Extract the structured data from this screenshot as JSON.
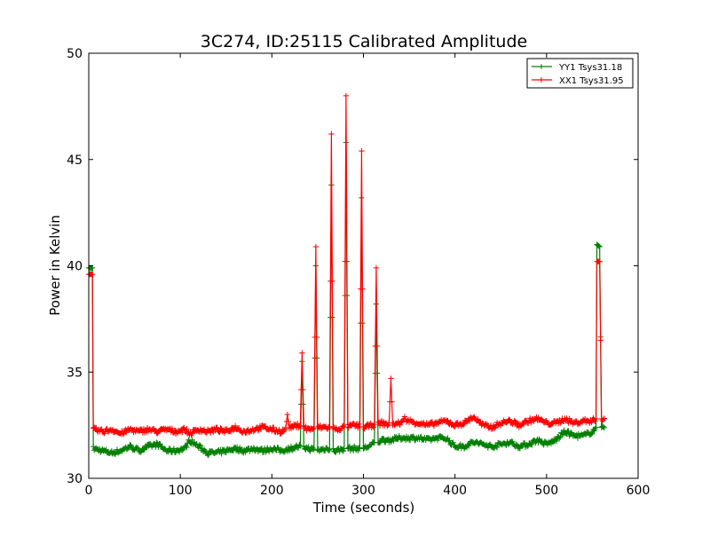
{
  "chart_data": {
    "type": "line",
    "title": "3C274, ID:25115 Calibrated Amplitude",
    "xlabel": "Time (seconds)",
    "ylabel": "Power in Kelvin",
    "xlim": [
      0,
      600
    ],
    "ylim": [
      30,
      50
    ],
    "xticks": [
      "0",
      "100",
      "200",
      "300",
      "400",
      "500",
      "600"
    ],
    "yticks": [
      "30",
      "35",
      "40",
      "45",
      "50"
    ],
    "grid": false,
    "legend_position": "top-right",
    "series": [
      {
        "name": "YY1 Tsys31.18",
        "color": "#008000",
        "marker": "+",
        "baseline": [
          [
            0,
            39.9
          ],
          [
            4,
            39.9
          ],
          [
            5,
            31.4
          ],
          [
            15,
            31.3
          ],
          [
            25,
            31.2
          ],
          [
            35,
            31.3
          ],
          [
            45,
            31.5
          ],
          [
            55,
            31.3
          ],
          [
            65,
            31.5
          ],
          [
            75,
            31.6
          ],
          [
            85,
            31.3
          ],
          [
            95,
            31.3
          ],
          [
            105,
            31.4
          ],
          [
            110,
            31.8
          ],
          [
            120,
            31.5
          ],
          [
            130,
            31.2
          ],
          [
            140,
            31.2
          ],
          [
            150,
            31.3
          ],
          [
            160,
            31.4
          ],
          [
            170,
            31.3
          ],
          [
            180,
            31.4
          ],
          [
            190,
            31.3
          ],
          [
            200,
            31.4
          ],
          [
            210,
            31.3
          ],
          [
            220,
            31.4
          ],
          [
            230,
            31.5
          ],
          [
            240,
            31.4
          ],
          [
            250,
            31.3
          ],
          [
            260,
            31.4
          ],
          [
            270,
            31.3
          ],
          [
            280,
            31.4
          ],
          [
            290,
            31.4
          ],
          [
            300,
            31.4
          ],
          [
            310,
            31.6
          ],
          [
            320,
            31.8
          ],
          [
            330,
            31.8
          ],
          [
            340,
            31.9
          ],
          [
            350,
            31.9
          ],
          [
            360,
            31.9
          ],
          [
            370,
            31.8
          ],
          [
            380,
            31.9
          ],
          [
            390,
            31.9
          ],
          [
            400,
            31.5
          ],
          [
            410,
            31.5
          ],
          [
            420,
            31.7
          ],
          [
            430,
            31.6
          ],
          [
            440,
            31.5
          ],
          [
            450,
            31.6
          ],
          [
            460,
            31.7
          ],
          [
            470,
            31.5
          ],
          [
            480,
            31.6
          ],
          [
            490,
            31.8
          ],
          [
            500,
            31.6
          ],
          [
            510,
            31.8
          ],
          [
            520,
            32.2
          ],
          [
            530,
            32.0
          ],
          [
            540,
            32.0
          ],
          [
            550,
            32.2
          ],
          [
            554,
            32.4
          ],
          [
            555,
            41.0
          ],
          [
            558,
            40.9
          ],
          [
            560,
            32.4
          ],
          [
            563,
            32.3
          ]
        ],
        "spikes": [
          [
            233,
            35.5
          ],
          [
            248,
            40.0
          ],
          [
            265,
            43.8
          ],
          [
            281,
            45.8
          ],
          [
            298,
            43.2
          ],
          [
            314,
            38.2
          ]
        ]
      },
      {
        "name": "XX1 Tsys31.95",
        "color": "#ff0000",
        "marker": "+",
        "baseline": [
          [
            0,
            39.6
          ],
          [
            4,
            39.6
          ],
          [
            5,
            32.3
          ],
          [
            15,
            32.2
          ],
          [
            25,
            32.3
          ],
          [
            35,
            32.1
          ],
          [
            45,
            32.3
          ],
          [
            55,
            32.2
          ],
          [
            65,
            32.3
          ],
          [
            75,
            32.2
          ],
          [
            85,
            32.3
          ],
          [
            95,
            32.2
          ],
          [
            105,
            32.3
          ],
          [
            110,
            32.1
          ],
          [
            120,
            32.3
          ],
          [
            130,
            32.2
          ],
          [
            140,
            32.3
          ],
          [
            150,
            32.2
          ],
          [
            160,
            32.4
          ],
          [
            170,
            32.2
          ],
          [
            180,
            32.3
          ],
          [
            190,
            32.4
          ],
          [
            200,
            32.3
          ],
          [
            210,
            32.2
          ],
          [
            220,
            32.4
          ],
          [
            230,
            32.5
          ],
          [
            240,
            32.3
          ],
          [
            250,
            32.4
          ],
          [
            260,
            32.4
          ],
          [
            270,
            32.3
          ],
          [
            280,
            32.4
          ],
          [
            290,
            32.5
          ],
          [
            300,
            32.4
          ],
          [
            310,
            32.5
          ],
          [
            320,
            32.6
          ],
          [
            330,
            32.5
          ],
          [
            340,
            32.6
          ],
          [
            350,
            32.7
          ],
          [
            360,
            32.6
          ],
          [
            370,
            32.5
          ],
          [
            380,
            32.6
          ],
          [
            390,
            32.7
          ],
          [
            400,
            32.5
          ],
          [
            410,
            32.6
          ],
          [
            420,
            32.9
          ],
          [
            430,
            32.5
          ],
          [
            440,
            32.4
          ],
          [
            450,
            32.6
          ],
          [
            460,
            32.7
          ],
          [
            470,
            32.5
          ],
          [
            480,
            32.7
          ],
          [
            490,
            32.8
          ],
          [
            500,
            32.6
          ],
          [
            510,
            32.6
          ],
          [
            520,
            32.8
          ],
          [
            530,
            32.6
          ],
          [
            540,
            32.7
          ],
          [
            550,
            32.7
          ],
          [
            554,
            32.8
          ],
          [
            555,
            40.2
          ],
          [
            558,
            40.2
          ],
          [
            560,
            32.8
          ],
          [
            563,
            32.8
          ]
        ],
        "spikes": [
          [
            217,
            33.0
          ],
          [
            233,
            35.9
          ],
          [
            248,
            40.9
          ],
          [
            265,
            46.2
          ],
          [
            281,
            48.0
          ],
          [
            298,
            45.4
          ],
          [
            314,
            39.9
          ],
          [
            330,
            34.7
          ],
          [
            345,
            32.9
          ]
        ]
      }
    ]
  }
}
